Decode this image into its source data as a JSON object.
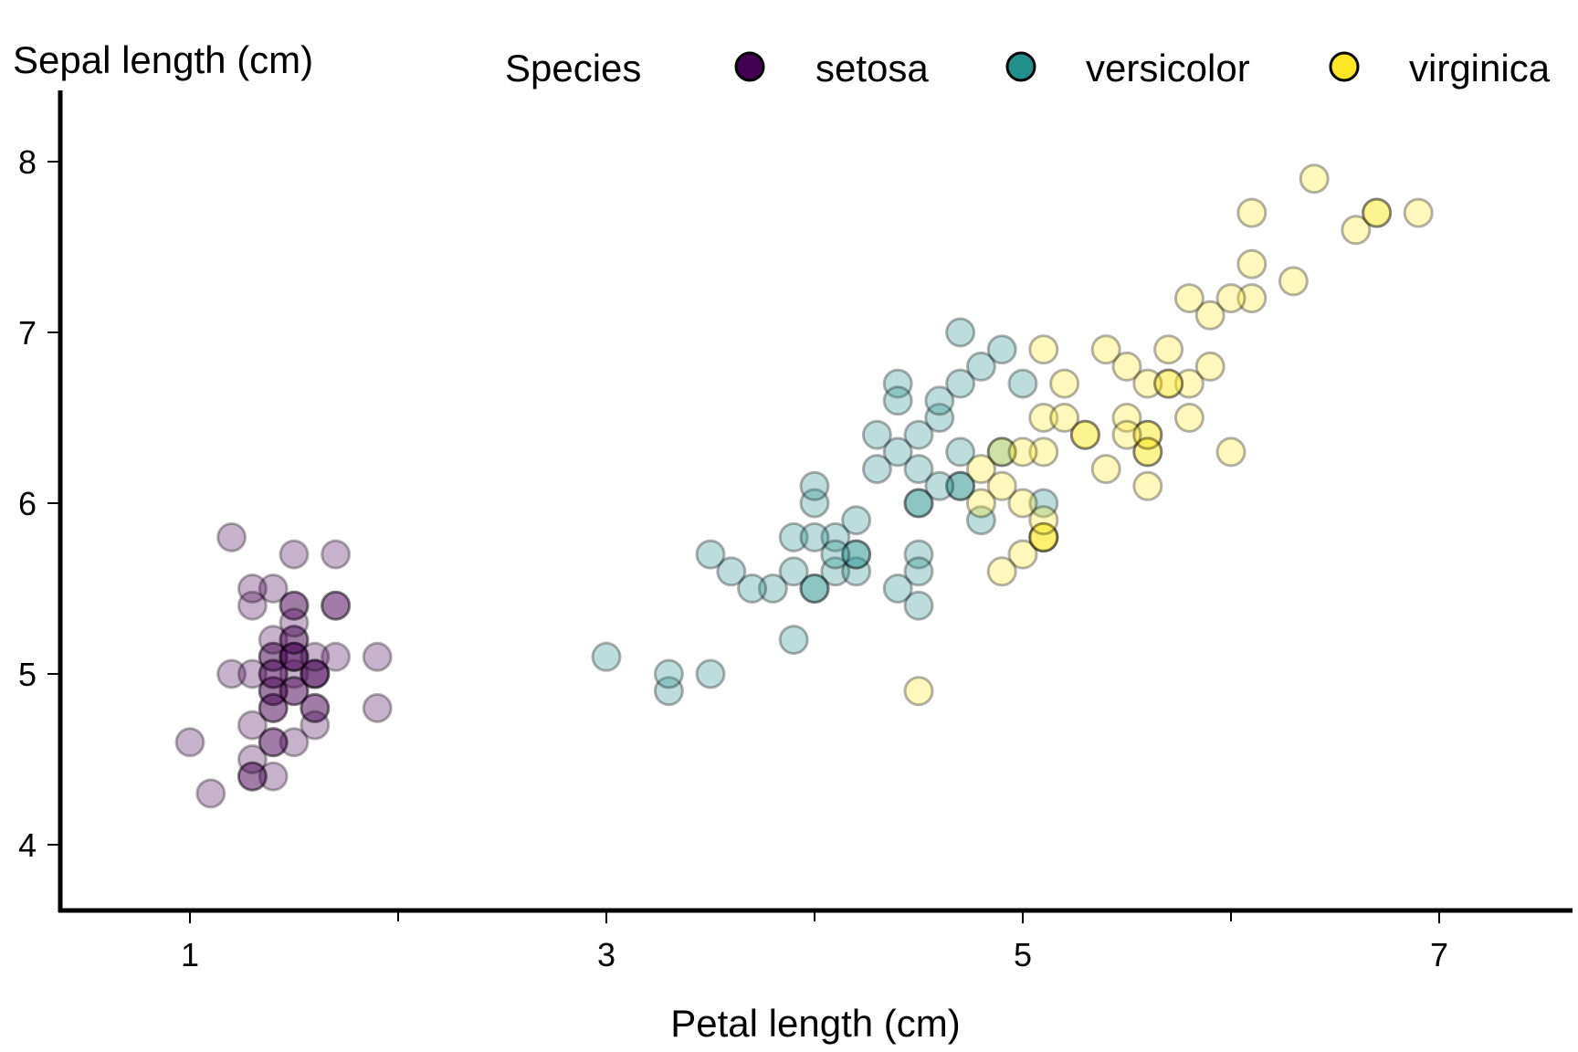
{
  "chart_data": {
    "type": "scatter",
    "xlabel": "Petal length (cm)",
    "ylabel": "Sepal length (cm)",
    "xlim": [
      0.4,
      7.6
    ],
    "ylim": [
      3.6,
      8.4
    ],
    "x_ticks_labeled": [
      1,
      3,
      5,
      7
    ],
    "x_ticks_minor": [
      2,
      4,
      6
    ],
    "y_ticks": [
      4,
      5,
      6,
      7,
      8
    ],
    "legend": {
      "title": "Species",
      "placement": "top",
      "entries": [
        "setosa",
        "versicolor",
        "virginica"
      ]
    },
    "grid": false,
    "point_opacity": 0.3,
    "series": [
      {
        "name": "setosa",
        "color": "#440154",
        "x": [
          1.4,
          1.4,
          1.3,
          1.5,
          1.4,
          1.7,
          1.4,
          1.5,
          1.4,
          1.5,
          1.5,
          1.6,
          1.4,
          1.1,
          1.2,
          1.5,
          1.3,
          1.4,
          1.7,
          1.5,
          1.7,
          1.5,
          1.0,
          1.7,
          1.9,
          1.6,
          1.6,
          1.5,
          1.4,
          1.6,
          1.6,
          1.5,
          1.5,
          1.4,
          1.5,
          1.2,
          1.3,
          1.4,
          1.3,
          1.5,
          1.3,
          1.3,
          1.3,
          1.6,
          1.9,
          1.4,
          1.6,
          1.4,
          1.5,
          1.4
        ],
        "y": [
          5.1,
          4.9,
          4.7,
          4.6,
          5.0,
          5.4,
          4.6,
          5.0,
          4.4,
          4.9,
          5.4,
          4.8,
          4.8,
          4.3,
          5.8,
          5.7,
          5.4,
          5.1,
          5.7,
          5.1,
          5.4,
          5.1,
          4.6,
          5.1,
          4.8,
          5.0,
          5.0,
          5.2,
          5.2,
          4.7,
          4.8,
          5.4,
          5.2,
          5.5,
          4.9,
          5.0,
          5.5,
          4.9,
          4.4,
          5.1,
          5.0,
          4.5,
          4.4,
          5.0,
          5.1,
          4.8,
          5.1,
          4.6,
          5.3,
          5.0
        ]
      },
      {
        "name": "versicolor",
        "color": "#21908C",
        "x": [
          4.7,
          4.5,
          4.9,
          4.0,
          4.6,
          4.5,
          4.7,
          3.3,
          4.6,
          3.9,
          3.5,
          4.2,
          4.0,
          4.7,
          3.6,
          4.4,
          4.5,
          4.1,
          4.5,
          3.9,
          4.8,
          4.0,
          4.9,
          4.7,
          4.3,
          4.4,
          4.8,
          5.0,
          4.5,
          3.5,
          3.8,
          3.7,
          3.9,
          5.1,
          4.5,
          4.5,
          4.7,
          4.4,
          4.1,
          4.0,
          4.4,
          4.6,
          4.0,
          3.3,
          4.2,
          4.2,
          4.2,
          4.3,
          3.0,
          4.1
        ],
        "y": [
          7.0,
          6.4,
          6.9,
          5.5,
          6.5,
          5.7,
          6.3,
          4.9,
          6.6,
          5.2,
          5.0,
          5.9,
          6.0,
          6.1,
          5.6,
          6.7,
          5.6,
          5.8,
          6.2,
          5.6,
          5.9,
          6.1,
          6.3,
          6.1,
          6.4,
          6.6,
          6.8,
          6.7,
          6.0,
          5.7,
          5.5,
          5.5,
          5.8,
          6.0,
          5.4,
          6.0,
          6.7,
          6.3,
          5.6,
          5.5,
          5.5,
          6.1,
          5.8,
          5.0,
          5.6,
          5.7,
          5.7,
          6.2,
          5.1,
          5.7
        ]
      },
      {
        "name": "virginica",
        "color": "#FDE725",
        "x": [
          6.0,
          5.1,
          5.9,
          5.6,
          5.8,
          6.6,
          4.5,
          6.3,
          5.8,
          6.1,
          5.1,
          5.3,
          5.5,
          5.0,
          5.1,
          5.3,
          5.5,
          6.7,
          6.9,
          5.0,
          5.7,
          4.9,
          6.7,
          4.9,
          5.7,
          6.0,
          4.8,
          4.9,
          5.6,
          5.8,
          6.1,
          6.4,
          5.6,
          5.1,
          5.6,
          6.1,
          5.6,
          5.5,
          4.8,
          5.4,
          5.6,
          5.1,
          5.1,
          5.9,
          5.7,
          5.2,
          5.0,
          5.2,
          5.4,
          5.1
        ],
        "y": [
          6.3,
          5.8,
          7.1,
          6.3,
          6.5,
          7.6,
          4.9,
          7.3,
          6.7,
          7.2,
          6.5,
          6.4,
          6.8,
          5.7,
          5.8,
          6.4,
          6.5,
          7.7,
          7.7,
          6.0,
          6.9,
          5.6,
          7.7,
          6.3,
          6.7,
          7.2,
          6.2,
          6.1,
          6.4,
          7.2,
          7.4,
          7.9,
          6.4,
          6.3,
          6.1,
          7.7,
          6.3,
          6.4,
          6.0,
          6.9,
          6.7,
          6.9,
          5.8,
          6.8,
          6.7,
          6.7,
          6.3,
          6.5,
          6.2,
          5.9
        ]
      }
    ]
  }
}
